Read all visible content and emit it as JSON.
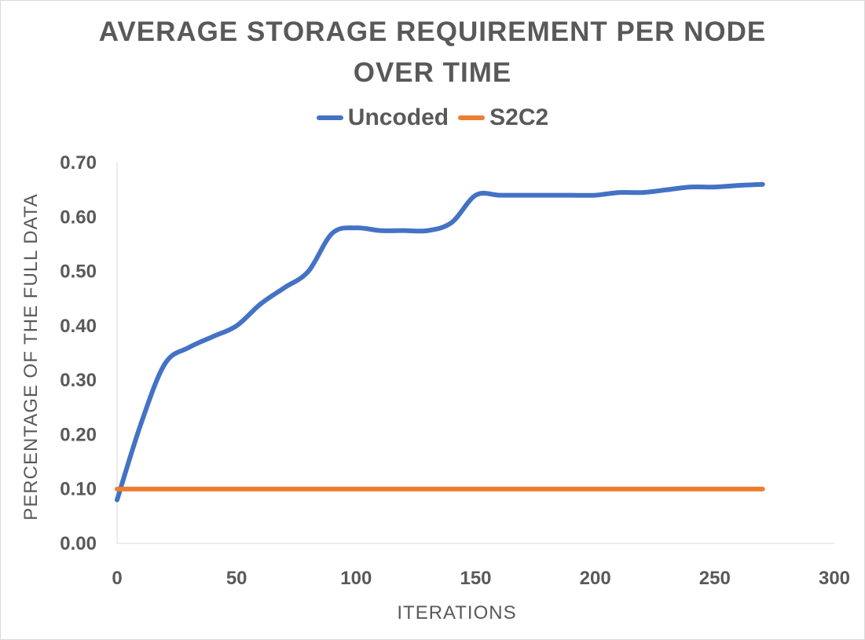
{
  "chart_data": {
    "type": "line",
    "title_lines": [
      "AVERAGE STORAGE REQUIREMENT PER NODE",
      "OVER TIME"
    ],
    "xlabel": "ITERATIONS",
    "ylabel": "PERCENTAGE OF THE FULL DATA",
    "xlim": [
      0,
      300
    ],
    "ylim": [
      0,
      0.7
    ],
    "x_ticks": [
      "0",
      "50",
      "100",
      "150",
      "200",
      "250",
      "300"
    ],
    "y_ticks": [
      "0.00",
      "0.10",
      "0.20",
      "0.30",
      "0.40",
      "0.50",
      "0.60",
      "0.70"
    ],
    "grid": false,
    "legend_position": "top",
    "series": [
      {
        "name": "Uncoded",
        "color": "#4472c4",
        "x": [
          0,
          10,
          20,
          30,
          40,
          50,
          60,
          70,
          80,
          90,
          100,
          110,
          120,
          130,
          140,
          150,
          160,
          170,
          180,
          190,
          200,
          210,
          220,
          230,
          240,
          250,
          260,
          270
        ],
        "y": [
          0.08,
          0.22,
          0.33,
          0.36,
          0.38,
          0.4,
          0.44,
          0.47,
          0.5,
          0.57,
          0.58,
          0.575,
          0.575,
          0.575,
          0.59,
          0.64,
          0.64,
          0.64,
          0.64,
          0.64,
          0.64,
          0.645,
          0.645,
          0.65,
          0.655,
          0.655,
          0.658,
          0.66
        ]
      },
      {
        "name": "S2C2",
        "color": "#ed7d31",
        "x": [
          0,
          270
        ],
        "y": [
          0.1,
          0.1
        ]
      }
    ]
  }
}
